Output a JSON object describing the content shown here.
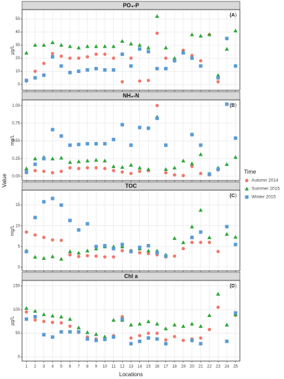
{
  "y_label": "Value",
  "x_label": "Locations",
  "legend_title": "Time",
  "chart_data": [
    {
      "type": "scatter",
      "title": "PO₄-P",
      "tag": "(A)",
      "ylabel": "µg/L",
      "x": [
        1,
        2,
        3,
        4,
        5,
        6,
        7,
        8,
        9,
        10,
        11,
        12,
        13,
        14,
        15,
        16,
        17,
        18,
        19,
        20,
        21,
        22,
        23,
        24,
        25
      ],
      "xlim": [
        0.5,
        25.5
      ],
      "xticks": [
        1,
        2,
        3,
        4,
        5,
        6,
        7,
        8,
        9,
        10,
        11,
        12,
        13,
        14,
        15,
        16,
        17,
        18,
        19,
        20,
        21,
        22,
        23,
        24,
        25
      ],
      "ylim": [
        -4.5,
        57
      ],
      "yticks": [
        0,
        10,
        20,
        30,
        40,
        50
      ],
      "grid": true,
      "series": [
        {
          "name": "Autumn 2014",
          "color": "#f0776a",
          "values": [
            2.5,
            10,
            16,
            23.5,
            21.5,
            20,
            20,
            21,
            23,
            23,
            20,
            2,
            20,
            2.5,
            3,
            39,
            20,
            19,
            26,
            22,
            18,
            38,
            2,
            null,
            null
          ]
        },
        {
          "name": "Summer 2015",
          "color": "#2ca637",
          "values": [
            24,
            30,
            30,
            32,
            30,
            29,
            28,
            29,
            29,
            29,
            29,
            33,
            31,
            30,
            28,
            52,
            28,
            20,
            25,
            38,
            37,
            38,
            7,
            27,
            41
          ]
        },
        {
          "name": "Winter 2015",
          "color": "#5b9bd5",
          "values": [
            3,
            5,
            7,
            21,
            14,
            9,
            10,
            11,
            12,
            11,
            11,
            23,
            14,
            27,
            25,
            12,
            12,
            18,
            24,
            20,
            14,
            null,
            5,
            35,
            14
          ]
        }
      ]
    },
    {
      "type": "scatter",
      "title": "NH₄-N",
      "tag": "(B)",
      "ylabel": "mg/L",
      "x": [
        1,
        2,
        3,
        4,
        5,
        6,
        7,
        8,
        9,
        10,
        11,
        12,
        13,
        14,
        15,
        16,
        17,
        18,
        19,
        20,
        21,
        22,
        23,
        24,
        25
      ],
      "xlim": [
        0.5,
        25.5
      ],
      "xticks": [
        1,
        2,
        3,
        4,
        5,
        6,
        7,
        8,
        9,
        10,
        11,
        12,
        13,
        14,
        15,
        16,
        17,
        18,
        19,
        20,
        21,
        22,
        23,
        24,
        25
      ],
      "ylim": [
        -0.06,
        1.08
      ],
      "yticks": [
        {
          "value": 0,
          "label": "0.00"
        },
        0.25,
        {
          "value": 0.5,
          "label": "0.50"
        },
        0.75,
        {
          "value": 1,
          "label": "1.00"
        }
      ],
      "grid": true,
      "series": [
        {
          "name": "Autumn 2014",
          "color": "#f0776a",
          "values": [
            0.05,
            0.08,
            0.07,
            0.05,
            0.07,
            0.12,
            0.11,
            0.12,
            0.12,
            0.11,
            0.08,
            0.06,
            0.04,
            0.07,
            0.08,
            1.0,
            0.05,
            0.02,
            0.01,
            0.14,
            0.04,
            0.02,
            0.09,
            null,
            null
          ]
        },
        {
          "name": "Summer 2015",
          "color": "#2ca637",
          "values": [
            0.11,
            0.25,
            0.27,
            0.25,
            0.26,
            0.2,
            0.21,
            0.22,
            0.23,
            0.22,
            0.14,
            0.13,
            0.16,
            0.12,
            0.1,
            0.84,
            0.1,
            0.12,
            0.22,
            0.18,
            0.31,
            0.04,
            0.12,
            0.17,
            0.27
          ]
        },
        {
          "name": "Winter 2015",
          "color": "#5b9bd5",
          "values": [
            0.06,
            0.17,
            0.25,
            0.66,
            0.57,
            0.44,
            0.45,
            0.46,
            0.46,
            0.46,
            0.52,
            0.73,
            0.44,
            0.69,
            0.68,
            0.82,
            0.44,
            null,
            null,
            0.59,
            0.44,
            0.03,
            0.1,
            1.02,
            0.54
          ]
        }
      ]
    },
    {
      "type": "scatter",
      "title": "TOC",
      "tag": "(C)",
      "ylabel": "mg/L",
      "x": [
        1,
        2,
        3,
        4,
        5,
        6,
        7,
        8,
        9,
        10,
        11,
        12,
        13,
        14,
        15,
        16,
        17,
        18,
        19,
        20,
        21,
        22,
        23,
        24,
        25
      ],
      "xlim": [
        0.5,
        25.5
      ],
      "xticks": [
        1,
        2,
        3,
        4,
        5,
        6,
        7,
        8,
        9,
        10,
        11,
        12,
        13,
        14,
        15,
        16,
        17,
        18,
        19,
        20,
        21,
        22,
        23,
        24,
        25
      ],
      "ylim": [
        -0.85,
        18.6
      ],
      "yticks": [
        0,
        5,
        10,
        15
      ],
      "grid": true,
      "series": [
        {
          "name": "Autumn 2014",
          "color": "#f0776a",
          "values": [
            8.5,
            7.8,
            7.2,
            6.6,
            6.5,
            3,
            2.6,
            2.8,
            2.7,
            2.5,
            2.5,
            4,
            4,
            3.5,
            3.3,
            3,
            2.5,
            2.7,
            4.5,
            6,
            6,
            6,
            3.8,
            null,
            null
          ]
        },
        {
          "name": "Summer 2015",
          "color": "#2ca637",
          "values": [
            4,
            2.5,
            2.2,
            2.6,
            2,
            3.8,
            3.5,
            4,
            4.5,
            5,
            5,
            5,
            4,
            4.5,
            4,
            4,
            3,
            7,
            6,
            9.8,
            13.8,
            7.2,
            null,
            8,
            7.3
          ]
        },
        {
          "name": "Winter 2015",
          "color": "#5b9bd5",
          "values": [
            3.8,
            12,
            15.8,
            16.6,
            15,
            11.3,
            9,
            10.5,
            5,
            5.2,
            4.5,
            5.5,
            3.8,
            4.8,
            5.2,
            3.5,
            2.7,
            null,
            null,
            7.2,
            8.5,
            null,
            null,
            9.8,
            5.5
          ]
        }
      ]
    },
    {
      "type": "scatter",
      "title": "Chl a",
      "tag": "(D)",
      "ylabel": "µg/L",
      "x": [
        1,
        2,
        3,
        4,
        5,
        6,
        7,
        8,
        9,
        10,
        11,
        12,
        13,
        14,
        15,
        16,
        17,
        18,
        19,
        20,
        21,
        22,
        23,
        24,
        25
      ],
      "xlim": [
        0.5,
        25.5
      ],
      "xticks": [
        1,
        2,
        3,
        4,
        5,
        6,
        7,
        8,
        9,
        10,
        11,
        12,
        13,
        14,
        15,
        16,
        17,
        18,
        19,
        20,
        21,
        22,
        23,
        24,
        25
      ],
      "ylim": [
        -8.7,
        161.6
      ],
      "yticks": [
        0,
        50,
        100,
        150
      ],
      "grid": true,
      "series": [
        {
          "name": "Autumn 2014",
          "color": "#f0776a",
          "values": [
            95,
            78,
            75,
            73,
            72,
            65,
            52,
            42,
            38,
            38,
            45,
            85,
            40,
            45,
            50,
            50,
            36,
            43,
            35,
            38,
            40,
            58,
            105,
            null,
            88
          ]
        },
        {
          "name": "Summer 2015",
          "color": "#2ca637",
          "values": [
            103,
            97,
            90,
            87,
            85,
            80,
            62,
            52,
            48,
            43,
            78,
            78,
            68,
            70,
            75,
            70,
            60,
            68,
            65,
            70,
            65,
            88,
            133,
            68,
            90
          ]
        },
        {
          "name": "Winter 2015",
          "color": "#5b9bd5",
          "values": [
            80,
            85,
            47,
            42,
            53,
            53,
            53,
            38,
            35,
            37,
            42,
            80,
            28,
            33,
            40,
            38,
            28,
            null,
            null,
            35,
            28,
            null,
            null,
            33,
            93
          ]
        }
      ]
    }
  ]
}
